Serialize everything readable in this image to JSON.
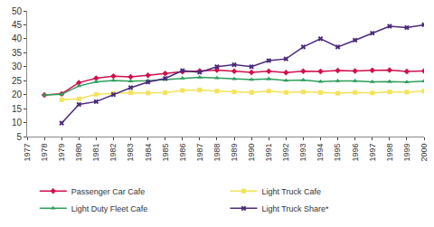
{
  "chart_data": {
    "type": "line",
    "x": [
      1977,
      1978,
      1979,
      1980,
      1981,
      1982,
      1983,
      1984,
      1985,
      1986,
      1987,
      1988,
      1989,
      1990,
      1991,
      1992,
      1993,
      1994,
      1995,
      1996,
      1997,
      1998,
      1999,
      2000
    ],
    "xlim": [
      1977,
      2000
    ],
    "xticks": [
      1977,
      1978,
      1979,
      1980,
      1981,
      1982,
      1983,
      1984,
      1985,
      1986,
      1987,
      1988,
      1989,
      1990,
      1991,
      1992,
      1993,
      1994,
      1995,
      1996,
      1997,
      1998,
      1999,
      2000
    ],
    "ylim": [
      5,
      50
    ],
    "yticks": [
      5,
      10,
      15,
      20,
      25,
      30,
      35,
      40,
      45,
      50
    ],
    "grid": false,
    "legend": "bottom",
    "series": [
      {
        "name": "Passenger Car Cafe",
        "color": "#d0104c",
        "marker": "diamond",
        "values": [
          null,
          19.9,
          20.3,
          24.3,
          25.9,
          26.6,
          26.4,
          26.9,
          27.6,
          28.2,
          28.5,
          28.8,
          28.4,
          28.0,
          28.4,
          27.9,
          28.4,
          28.3,
          28.6,
          28.5,
          28.7,
          28.8,
          28.3,
          28.5
        ]
      },
      {
        "name": "Light Truck Cafe",
        "color": "#f2e35a",
        "marker": "square",
        "values": [
          null,
          null,
          18.2,
          18.5,
          20.1,
          20.5,
          20.7,
          20.6,
          20.7,
          21.5,
          21.7,
          21.3,
          21.0,
          20.8,
          21.3,
          20.8,
          21.0,
          20.8,
          20.5,
          20.8,
          20.6,
          21.0,
          20.9,
          21.3
        ]
      },
      {
        "name": "Light Duty Fleet Cafe",
        "color": "#2e9e5b",
        "marker": "triangle-up",
        "values": [
          null,
          19.9,
          20.1,
          23.1,
          24.6,
          25.1,
          24.8,
          25.0,
          25.4,
          25.9,
          26.2,
          26.0,
          25.6,
          25.4,
          25.6,
          25.1,
          25.2,
          24.7,
          24.9,
          24.9,
          24.6,
          24.7,
          24.5,
          24.8
        ]
      },
      {
        "name": "Light Truck Share*",
        "color": "#4b2a7b",
        "marker": "x",
        "values": [
          null,
          null,
          9.8,
          16.5,
          17.5,
          20.0,
          22.5,
          24.5,
          25.8,
          28.6,
          28.0,
          30.0,
          30.7,
          30.0,
          32.2,
          32.8,
          37.1,
          40.0,
          37.1,
          39.5,
          42.0,
          44.5,
          44.0,
          45.0
        ]
      }
    ]
  }
}
